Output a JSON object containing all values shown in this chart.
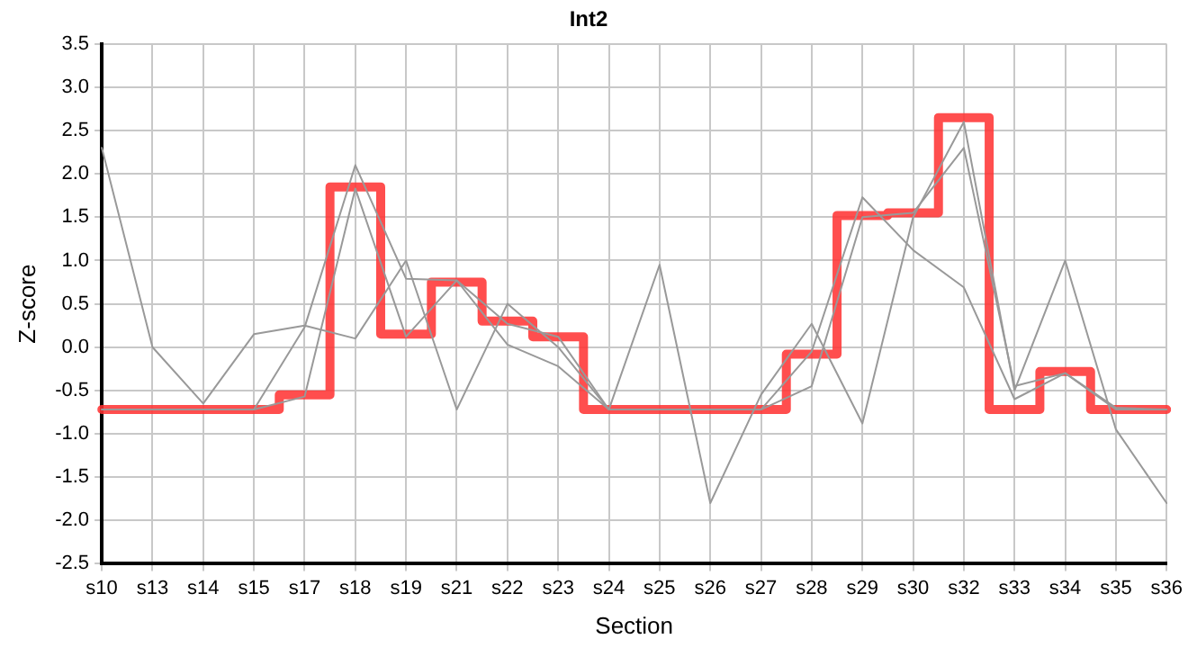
{
  "chart_data": {
    "type": "line",
    "title": "Int2",
    "xlabel": "Section",
    "ylabel": "Z-score",
    "categories": [
      "s10",
      "s13",
      "s14",
      "s15",
      "s17",
      "s18",
      "s19",
      "s21",
      "s22",
      "s23",
      "s24",
      "s25",
      "s26",
      "s27",
      "s28",
      "s29",
      "s30",
      "s32",
      "s33",
      "s34",
      "s35",
      "s36"
    ],
    "series": [
      {
        "color": "#999999",
        "values": [
          2.3,
          0.0,
          -0.65,
          0.15,
          0.25,
          0.1,
          1.0,
          -0.72,
          0.5,
          0.0,
          -0.72,
          0.95,
          -1.8,
          -0.55,
          0.27,
          -0.88,
          1.5,
          2.6,
          -0.5,
          1.0,
          -0.95,
          -1.8
        ]
      },
      {
        "color": "#999999",
        "values": [
          -0.72,
          -0.72,
          -0.72,
          -0.72,
          0.23,
          2.1,
          0.79,
          0.77,
          0.27,
          0.12,
          -0.72,
          -0.72,
          -0.72,
          -0.72,
          -0.05,
          1.73,
          1.12,
          0.69,
          -0.6,
          -0.3,
          -0.72,
          -0.72
        ]
      },
      {
        "color": "#999999",
        "values": [
          -0.72,
          -0.72,
          -0.72,
          -0.72,
          -0.57,
          1.83,
          0.12,
          0.77,
          0.03,
          -0.22,
          -0.72,
          -0.72,
          -0.72,
          -0.72,
          -0.45,
          1.5,
          1.55,
          2.3,
          -0.45,
          -0.3,
          -0.7,
          -0.72
        ]
      },
      {
        "type": "step",
        "color": "#ff3333",
        "values": [
          -0.72,
          -0.72,
          -0.72,
          -0.72,
          -0.55,
          1.85,
          0.15,
          0.75,
          0.3,
          0.12,
          -0.72,
          -0.72,
          -0.72,
          -0.72,
          -0.08,
          1.52,
          1.55,
          2.65,
          -0.72,
          -0.28,
          -0.72,
          -0.72
        ]
      }
    ],
    "ylim": [
      -2.5,
      3.5
    ],
    "yticks": [
      {
        "value": -2.5,
        "label": "-2.5"
      },
      {
        "value": -2,
        "label": "-2.0"
      },
      {
        "value": -1.5,
        "label": "-1.5"
      },
      {
        "value": -1,
        "label": "-1.0"
      },
      {
        "value": -0.5,
        "label": "-0.5"
      },
      {
        "value": 0,
        "label": "0.0"
      },
      {
        "value": 0.5,
        "label": "0.5"
      },
      {
        "value": 1,
        "label": "1.0"
      },
      {
        "value": 1.5,
        "label": "1.5"
      },
      {
        "value": 2,
        "label": "2.0"
      },
      {
        "value": 2.5,
        "label": "2.5"
      },
      {
        "value": 3,
        "label": "3.0"
      },
      {
        "value": 3.5,
        "label": "3.5"
      }
    ],
    "grid": true,
    "legend": false,
    "marker": "none",
    "line_style": "solid"
  }
}
